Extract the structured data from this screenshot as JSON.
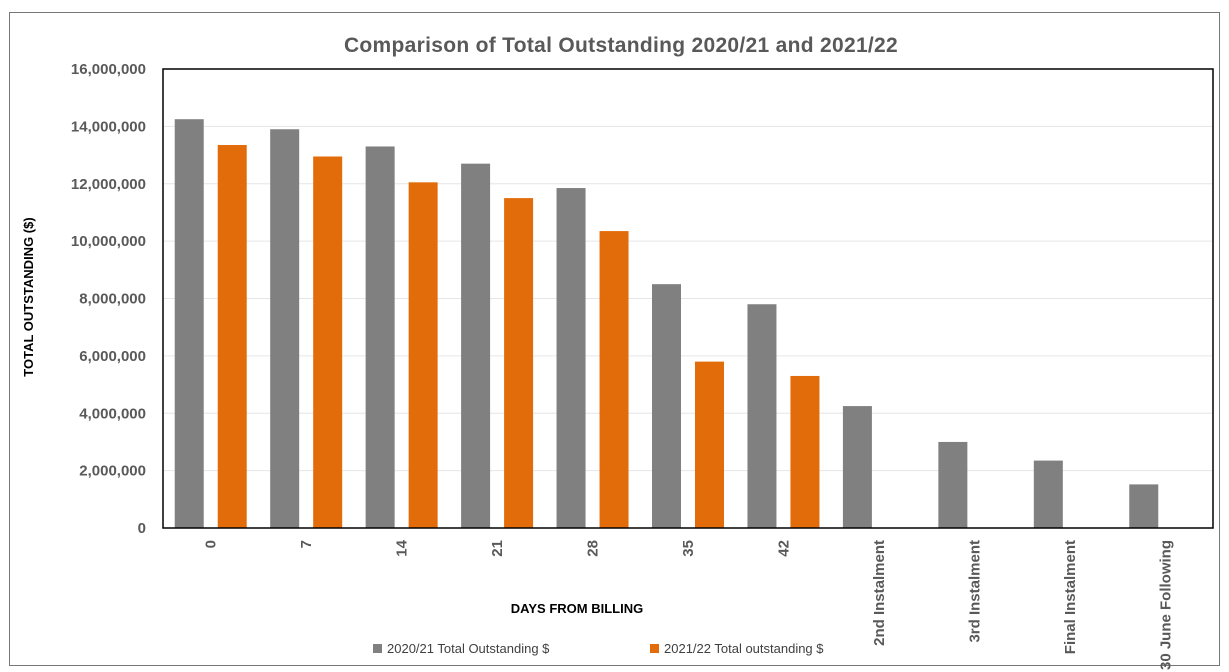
{
  "chart_data": {
    "type": "bar",
    "title": "Comparison of Total Outstanding 2020/21 and 2021/22",
    "xlabel": "DAYS FROM BILLING",
    "ylabel": "TOTAL OUTSTANDING ($)",
    "ylim": [
      0,
      16000000
    ],
    "yticks": [
      0,
      2000000,
      4000000,
      6000000,
      8000000,
      10000000,
      12000000,
      14000000,
      16000000
    ],
    "ytick_labels": [
      "0",
      "2,000,000",
      "4,000,000",
      "6,000,000",
      "8,000,000",
      "10,000,000",
      "12,000,000",
      "14,000,000",
      "16,000,000"
    ],
    "categories": [
      "0",
      "7",
      "14",
      "21",
      "28",
      "35",
      "42",
      "2nd Instalment",
      "3rd Instalment",
      "Final Instalment",
      "30 June Following"
    ],
    "series": [
      {
        "name": "2020/21 Total Outstanding $",
        "color": "#808080",
        "values": [
          14250000,
          13900000,
          13300000,
          12700000,
          11850000,
          8500000,
          7800000,
          4250000,
          3000000,
          2350000,
          1520000
        ]
      },
      {
        "name": "2021/22 Total outstanding $",
        "color": "#E36C0A",
        "values": [
          13350000,
          12950000,
          12050000,
          11500000,
          10350000,
          5800000,
          5300000,
          null,
          null,
          null,
          null
        ]
      }
    ],
    "grid": true,
    "legend_position": "bottom"
  }
}
